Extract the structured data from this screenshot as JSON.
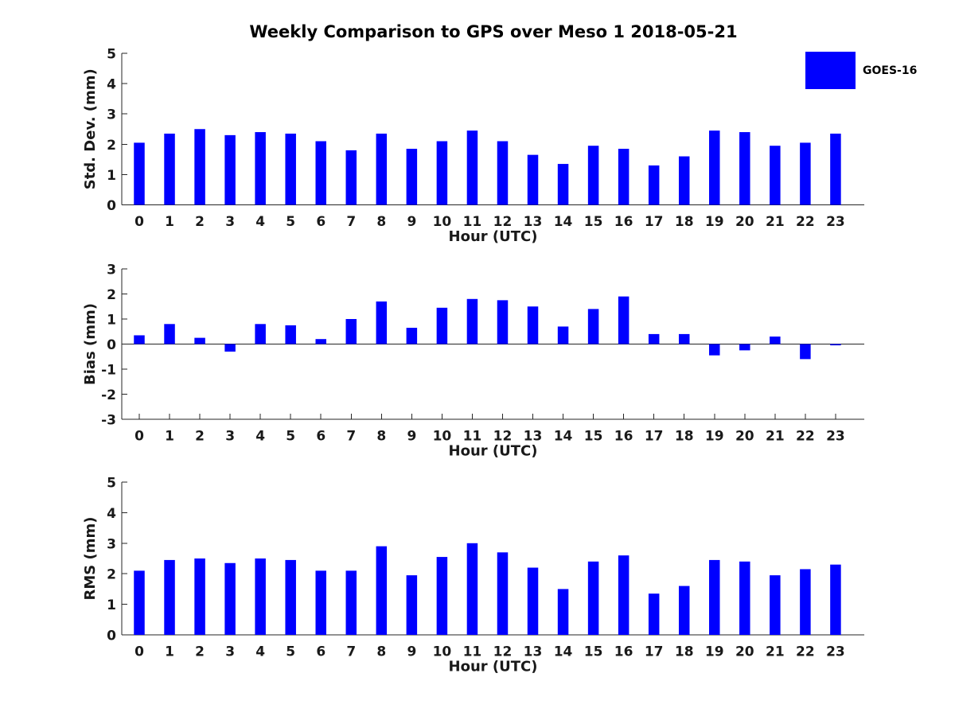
{
  "title": "Weekly Comparison to GPS over Meso 1 2018-05-21",
  "legend": {
    "label": "GOES-16",
    "position": "top-right"
  },
  "colors": {
    "bar": "#0000ff",
    "axis": "#262626",
    "text": "#191919"
  },
  "chart_data": [
    {
      "type": "bar",
      "series_name": "GOES-16",
      "ylabel": "Std. Dev. (mm)",
      "xlabel": "Hour (UTC)",
      "ylim": [
        0,
        5
      ],
      "yticks": [
        5,
        4,
        3,
        2,
        1,
        0
      ],
      "grid": false,
      "categories": [
        "0",
        "1",
        "2",
        "3",
        "4",
        "5",
        "6",
        "7",
        "8",
        "9",
        "10",
        "11",
        "12",
        "13",
        "14",
        "15",
        "16",
        "17",
        "18",
        "19",
        "20",
        "21",
        "22",
        "23"
      ],
      "values": [
        2.05,
        2.35,
        2.5,
        2.3,
        2.4,
        2.35,
        2.1,
        1.8,
        2.35,
        1.85,
        2.1,
        2.45,
        2.1,
        1.65,
        1.35,
        1.95,
        1.85,
        1.3,
        1.6,
        2.45,
        2.4,
        1.95,
        2.05,
        2.35
      ]
    },
    {
      "type": "bar",
      "series_name": "GOES-16",
      "ylabel": "Bias (mm)",
      "xlabel": "Hour (UTC)",
      "ylim": [
        -3,
        3
      ],
      "yticks": [
        3,
        2,
        1,
        0,
        -1,
        -2,
        -3
      ],
      "grid": false,
      "categories": [
        "0",
        "1",
        "2",
        "3",
        "4",
        "5",
        "6",
        "7",
        "8",
        "9",
        "10",
        "11",
        "12",
        "13",
        "14",
        "15",
        "16",
        "17",
        "18",
        "19",
        "20",
        "21",
        "22",
        "23"
      ],
      "values": [
        0.35,
        0.8,
        0.25,
        -0.3,
        0.8,
        0.75,
        0.2,
        1.0,
        1.7,
        0.65,
        1.45,
        1.8,
        1.75,
        1.5,
        0.7,
        1.4,
        1.9,
        0.4,
        0.4,
        -0.45,
        -0.25,
        0.3,
        -0.6,
        -0.05
      ]
    },
    {
      "type": "bar",
      "series_name": "GOES-16",
      "ylabel": "RMS (mm)",
      "xlabel": "Hour (UTC)",
      "ylim": [
        0,
        5
      ],
      "yticks": [
        5,
        4,
        3,
        2,
        1,
        0
      ],
      "grid": false,
      "categories": [
        "0",
        "1",
        "2",
        "3",
        "4",
        "5",
        "6",
        "7",
        "8",
        "9",
        "10",
        "11",
        "12",
        "13",
        "14",
        "15",
        "16",
        "17",
        "18",
        "19",
        "20",
        "21",
        "22",
        "23"
      ],
      "values": [
        2.1,
        2.45,
        2.5,
        2.35,
        2.5,
        2.45,
        2.1,
        2.1,
        2.9,
        1.95,
        2.55,
        3.0,
        2.7,
        2.2,
        1.5,
        2.4,
        2.6,
        1.35,
        1.6,
        2.45,
        2.4,
        1.95,
        2.15,
        2.3
      ]
    }
  ]
}
